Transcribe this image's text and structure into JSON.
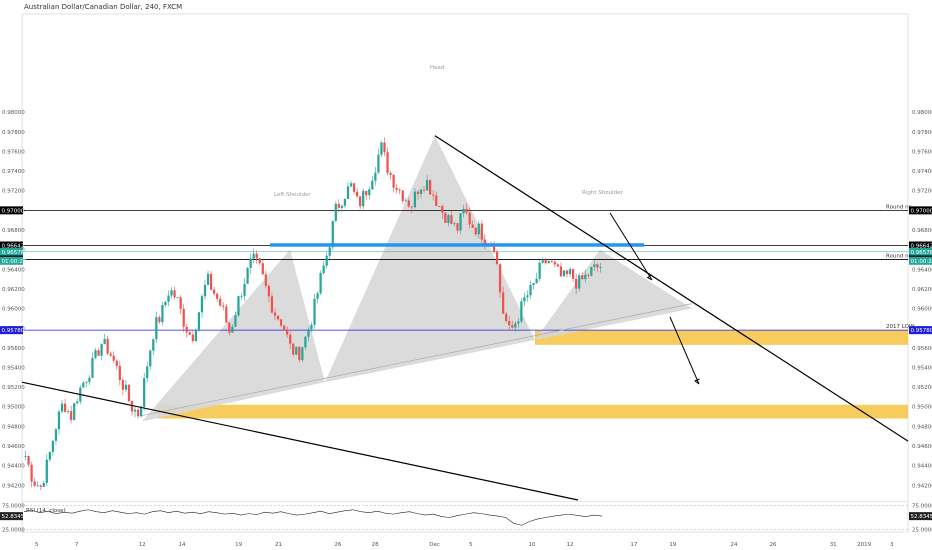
{
  "header": {
    "title": "Australian Dollar/Canadian Dollar, 240, FXCM"
  },
  "colors": {
    "up": "#26a69a",
    "down": "#ef5350",
    "pattern": "#d7d7d7",
    "zone": "#f5c342",
    "neckline": "#2196f3",
    "blue_level": "#1e1edc"
  },
  "chart_data": [
    {
      "type": "candlestick",
      "title": "Australian Dollar/Canadian Dollar, 240, FXCM",
      "ylim": [
        0.9405,
        0.99
      ],
      "y_ticks": [
        "0.98000",
        "0.97800",
        "0.97600",
        "0.97400",
        "0.97200",
        "0.97000",
        "0.96800",
        "0.96600",
        "0.96400",
        "0.96200",
        "0.96000",
        "0.95800",
        "0.95600",
        "0.95400",
        "0.95200",
        "0.95000",
        "0.94800",
        "0.94600",
        "0.94400",
        "0.94200"
      ],
      "x_ticks": [
        "5",
        "7",
        "12",
        "14",
        "19",
        "21",
        "26",
        "28",
        "Dec",
        "5",
        "10",
        "12",
        "17",
        "19",
        "24",
        "26",
        "31",
        "2019",
        "3"
      ],
      "close_path": [
        0.945,
        0.9425,
        0.9418,
        0.9445,
        0.948,
        0.9505,
        0.949,
        0.9515,
        0.953,
        0.9545,
        0.9565,
        0.9558,
        0.954,
        0.952,
        0.95,
        0.9492,
        0.954,
        0.958,
        0.9595,
        0.962,
        0.961,
        0.9585,
        0.957,
        0.96,
        0.963,
        0.9615,
        0.96,
        0.9575,
        0.9605,
        0.963,
        0.965,
        0.964,
        0.9615,
        0.9595,
        0.9585,
        0.956,
        0.9552,
        0.957,
        0.9595,
        0.963,
        0.966,
        0.97,
        0.9715,
        0.9725,
        0.9705,
        0.972,
        0.974,
        0.9765,
        0.974,
        0.9725,
        0.9715,
        0.9705,
        0.9725,
        0.973,
        0.9715,
        0.97,
        0.969,
        0.968,
        0.97,
        0.9685,
        0.968,
        0.967,
        0.9665,
        0.96,
        0.9575,
        0.959,
        0.961,
        0.962,
        0.964,
        0.965,
        0.964,
        0.963,
        0.9635,
        0.9625,
        0.9632,
        0.964,
        0.9643
      ],
      "levels": [
        {
          "label": "Round nr.",
          "value": 0.97,
          "tag": "0.97000",
          "color": "#000000"
        },
        {
          "label": "",
          "value": 0.96642,
          "tag": "0.96642",
          "color": "#000000"
        },
        {
          "label": "",
          "value": 0.96578,
          "tag": "0.96578",
          "color": "#26a69a"
        },
        {
          "label": "Round nr.",
          "value": 0.965,
          "tag": "0.96500",
          "color": "#000000"
        },
        {
          "label": "2017 LOW",
          "value": 0.9578,
          "tag": "0.95780",
          "color": "#1e1edc"
        }
      ],
      "price_tags_extra": [
        "01:00:24"
      ],
      "annotations": [
        "Head",
        "Left Shoulder",
        "Right Shoulder"
      ],
      "neckline": {
        "from": 0.9491,
        "to": 0.9605
      },
      "support_zones": [
        [
          0.9563,
          0.9578
        ],
        [
          0.9488,
          0.9502
        ]
      ]
    },
    {
      "type": "line",
      "title": "RSI (14, close)",
      "ylim": [
        20,
        80
      ],
      "y_ticks": [
        "75.0000",
        "25.0000"
      ],
      "last_value": "52.8345",
      "value_path": [
        62,
        65,
        60,
        63,
        58,
        61,
        59,
        63,
        66,
        62,
        60,
        64,
        61,
        58,
        60,
        57,
        62,
        64,
        60,
        63,
        59,
        61,
        58,
        62,
        60,
        57,
        59,
        55,
        58,
        56,
        61,
        59,
        62,
        58,
        55,
        57,
        60,
        63,
        58,
        61,
        64,
        66,
        62,
        60,
        63,
        59,
        57,
        60,
        62,
        58,
        55,
        57,
        52,
        50,
        54,
        57,
        60,
        58,
        55,
        53,
        50,
        38,
        34,
        42,
        47,
        50,
        53,
        55,
        57,
        54,
        52,
        55,
        53
      ]
    }
  ]
}
